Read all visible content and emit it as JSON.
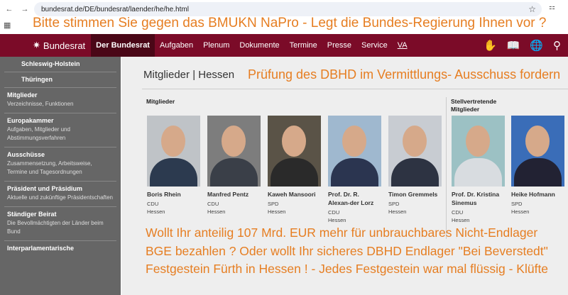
{
  "browser": {
    "url": "bundesrat.de/DE/bundesrat/laender/he/he.html"
  },
  "overlay": {
    "headline": "Bitte stimmen Sie gegen das BMUKN NaPro - Legt die Bundes-Regierung Ihnen vor ?",
    "subhead": "Prüfung des DBHD im Vermittlungs- Ausschuss fordern",
    "bottom": [
      "Wollt Ihr anteilig 107 Mrd. EUR mehr für unbrauchbares Nicht-Endlager",
      "BGE bezahlen ? Oder wollt Ihr sicheres DBHD Endlager \"Bei Beverstedt\"",
      "Festgestein Fürth in Hessen ! - Jedes Festgestein war mal flüssig - Klüfte"
    ]
  },
  "nav": {
    "logo": "Bundesrat",
    "items": [
      "Der Bundesrat",
      "Aufgaben",
      "Plenum",
      "Dokumente",
      "Termine",
      "Presse",
      "Service",
      "VA"
    ],
    "accent": "#7b0b28"
  },
  "sidebar": [
    {
      "title": "Schleswig-Holstein",
      "sub": ""
    },
    {
      "title": "Thüringen",
      "sub": ""
    },
    {
      "title": "Mitglieder",
      "sub": "Verzeichnisse, Funktionen"
    },
    {
      "title": "Europakammer",
      "sub": "Aufgaben, Mitglieder und Abstimmungsverfahren"
    },
    {
      "title": "Ausschüsse",
      "sub": "Zusammensetzung, Arbeitsweise, Termine und Tagesordnungen"
    },
    {
      "title": "Präsident und Präsidium",
      "sub": "Aktuelle und zukünftige Präsidentschaften"
    },
    {
      "title": "Ständiger Beirat",
      "sub": "Die Bevollmächtigten der Länder beim Bund"
    },
    {
      "title": "Interparlamentarische",
      "sub": ""
    }
  ],
  "main": {
    "title": "Mitglieder | Hessen",
    "members_heading": "Mitglieder",
    "deputies_heading": "Stellvertretende Mitglieder",
    "members": [
      {
        "name": "Boris Rhein",
        "party": "CDU",
        "state": "Hessen"
      },
      {
        "name": "Manfred Pentz",
        "party": "CDU",
        "state": "Hessen"
      },
      {
        "name": "Kaweh Mansoori",
        "party": "SPD",
        "state": "Hessen"
      },
      {
        "name": "Prof. Dr. R. Alexan-der Lorz",
        "party": "CDU",
        "state": "Hessen"
      },
      {
        "name": "Timon Gremmels",
        "party": "SPD",
        "state": "Hessen"
      }
    ],
    "deputies": [
      {
        "name": "Prof. Dr. Kristina Sinemus",
        "party": "CDU",
        "state": "Hessen"
      },
      {
        "name": "Heike Hofmann",
        "party": "SPD",
        "state": "Hessen"
      }
    ]
  }
}
